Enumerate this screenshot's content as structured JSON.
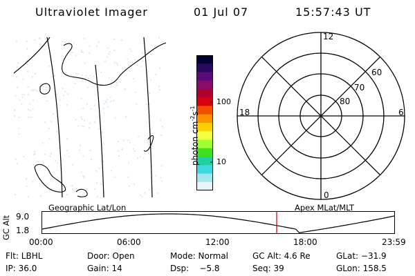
{
  "header": {
    "instrument": "Ultraviolet Imager",
    "date": "01 Jul 07",
    "time": "15:57:43 UT"
  },
  "map": {
    "label": "Geographic Lat/Lon",
    "land_color": "#ffffff",
    "speckle_color": "#d6ebe6"
  },
  "colorbar": {
    "label_main": "photon cm",
    "label_exp1": "-2",
    "label_mid": "s",
    "label_exp2": "-1",
    "tick_100": "100",
    "tick_10": "10",
    "colors": [
      "#000033",
      "#2a0a5e",
      "#5a0a7a",
      "#8a0a6a",
      "#b00030",
      "#d80010",
      "#f05000",
      "#ff9000",
      "#ffd000",
      "#f0ff40",
      "#a0ff30",
      "#40e020",
      "#20d0a0",
      "#40d8e0",
      "#a0e8f0",
      "#e8f4f8"
    ]
  },
  "polar": {
    "label": "Apex MLat/MLT",
    "mlt_12": "12",
    "mlt_18": "18",
    "mlt_6": "6",
    "mlt_0": "0",
    "lat_60": "60",
    "lat_70": "70",
    "lat_80": "80"
  },
  "altitude_plot": {
    "axis_label": "GC Alt",
    "y_top": "9.0",
    "y_bottom": "1.8",
    "x_ticks": [
      "00:00",
      "06:00",
      "12:00",
      "18:00",
      "23:59"
    ],
    "marker_color": "#cc0000",
    "current_time_fraction": 0.666
  },
  "footer": {
    "row1": {
      "flt": "Flt: LBHL",
      "door": "Door: Open",
      "mode": "Mode: Normal",
      "gcalt": "GC Alt: 4.6 Re",
      "glat": "GLat: −31.9"
    },
    "row2": {
      "ip": "IP: 36.0",
      "gain": "Gain: 14",
      "dsp": "Dsp:    −5.8",
      "seq": "Seq: 39",
      "glon": "GLon: 158.5"
    }
  }
}
